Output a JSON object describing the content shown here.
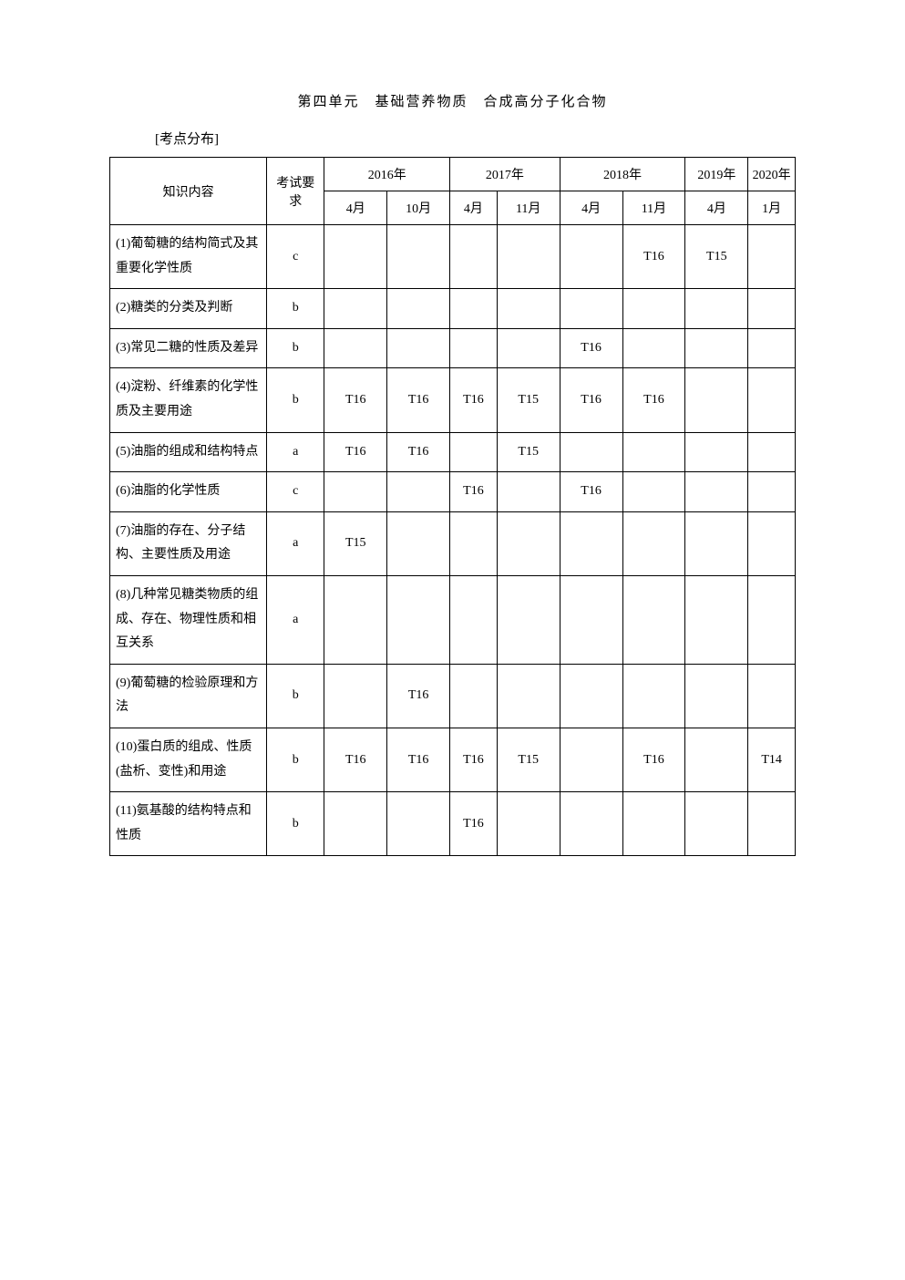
{
  "page_title": "第四单元　基础营养物质　合成高分子化合物",
  "section_label": "[考点分布]",
  "header": {
    "topic": "知识内容",
    "requirement": "考试要求",
    "years": {
      "y2016": "2016年",
      "y2017": "2017年",
      "y2018": "2018年",
      "y2019": "2019年",
      "y2020": "2020年"
    },
    "months": {
      "m4": "4月",
      "m10": "10月",
      "m4b": "4月",
      "m11": "11月",
      "m4c": "4月",
      "m11b": "11月",
      "m4d": "4月",
      "m1": "1月"
    }
  },
  "rows": [
    {
      "topic": "(1)葡萄糖的结构简式及其重要化学性质",
      "req": "c",
      "y2016_4": "",
      "y2016_10": "",
      "y2017_4": "",
      "y2017_11": "",
      "y2018_4": "",
      "y2018_11": "T16",
      "y2019_4": "T15",
      "y2020_1": ""
    },
    {
      "topic": "(2)糖类的分类及判断",
      "req": "b",
      "y2016_4": "",
      "y2016_10": "",
      "y2017_4": "",
      "y2017_11": "",
      "y2018_4": "",
      "y2018_11": "",
      "y2019_4": "",
      "y2020_1": ""
    },
    {
      "topic": "(3)常见二糖的性质及差异",
      "req": "b",
      "y2016_4": "",
      "y2016_10": "",
      "y2017_4": "",
      "y2017_11": "",
      "y2018_4": "T16",
      "y2018_11": "",
      "y2019_4": "",
      "y2020_1": ""
    },
    {
      "topic": "(4)淀粉、纤维素的化学性质及主要用途",
      "req": "b",
      "y2016_4": "T16",
      "y2016_10": "T16",
      "y2017_4": "T16",
      "y2017_11": "T15",
      "y2018_4": "T16",
      "y2018_11": "T16",
      "y2019_4": "",
      "y2020_1": ""
    },
    {
      "topic": "(5)油脂的组成和结构特点",
      "req": "a",
      "y2016_4": "T16",
      "y2016_10": "T16",
      "y2017_4": "",
      "y2017_11": "T15",
      "y2018_4": "",
      "y2018_11": "",
      "y2019_4": "",
      "y2020_1": ""
    },
    {
      "topic": "(6)油脂的化学性质",
      "req": "c",
      "y2016_4": "",
      "y2016_10": "",
      "y2017_4": "T16",
      "y2017_11": "",
      "y2018_4": "T16",
      "y2018_11": "",
      "y2019_4": "",
      "y2020_1": ""
    },
    {
      "topic": "(7)油脂的存在、分子结构、主要性质及用途",
      "req": "a",
      "y2016_4": "T15",
      "y2016_10": "",
      "y2017_4": "",
      "y2017_11": "",
      "y2018_4": "",
      "y2018_11": "",
      "y2019_4": "",
      "y2020_1": ""
    },
    {
      "topic": "(8)几种常见糖类物质的组成、存在、物理性质和相互关系",
      "req": "a",
      "y2016_4": "",
      "y2016_10": "",
      "y2017_4": "",
      "y2017_11": "",
      "y2018_4": "",
      "y2018_11": "",
      "y2019_4": "",
      "y2020_1": ""
    },
    {
      "topic": "(9)葡萄糖的检验原理和方法",
      "req": "b",
      "y2016_4": "",
      "y2016_10": "T16",
      "y2017_4": "",
      "y2017_11": "",
      "y2018_4": "",
      "y2018_11": "",
      "y2019_4": "",
      "y2020_1": ""
    },
    {
      "topic": "(10)蛋白质的组成、性质(盐析、变性)和用途",
      "req": "b",
      "y2016_4": "T16",
      "y2016_10": "T16",
      "y2017_4": "T16",
      "y2017_11": "T15",
      "y2018_4": "",
      "y2018_11": "T16",
      "y2019_4": "",
      "y2020_1": "T14"
    },
    {
      "topic": "(11)氨基酸的结构特点和性质",
      "req": "b",
      "y2016_4": "",
      "y2016_10": "",
      "y2017_4": "T16",
      "y2017_11": "",
      "y2018_4": "",
      "y2018_11": "",
      "y2019_4": "",
      "y2020_1": ""
    }
  ],
  "style": {
    "border_color": "#000000",
    "background": "#ffffff",
    "text_color": "#000000",
    "font_family": "SimSun",
    "title_fontsize": 15,
    "cell_fontsize": 14
  }
}
